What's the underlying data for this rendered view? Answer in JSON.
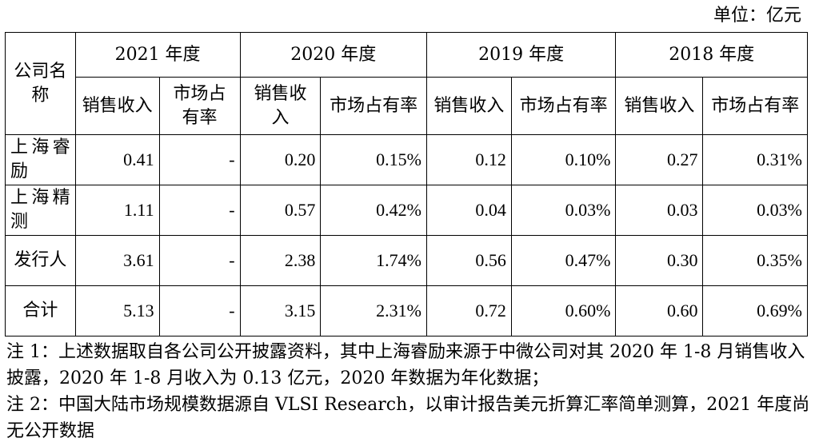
{
  "unit_label": "单位：亿元",
  "table": {
    "company_header": "公司名称",
    "years": [
      {
        "label": "2021 年度",
        "sales": "销售收入",
        "share": "市场占有率"
      },
      {
        "label": "2020 年度",
        "sales": "销售收入",
        "share": "市场占有率"
      },
      {
        "label": "2019 年度",
        "sales": "销售收入",
        "share": "市场占有率"
      },
      {
        "label": "2018 年度",
        "sales": "销售收入",
        "share": "市场占有率"
      }
    ],
    "rows": [
      {
        "name": "上海睿励",
        "cells": [
          "0.41",
          "-",
          "0.20",
          "0.15%",
          "0.12",
          "0.10%",
          "0.27",
          "0.31%"
        ]
      },
      {
        "name": "上海精测",
        "cells": [
          "1.11",
          "-",
          "0.57",
          "0.42%",
          "0.04",
          "0.03%",
          "0.03",
          "0.03%"
        ]
      },
      {
        "name": "发行人",
        "cells": [
          "3.61",
          "-",
          "2.38",
          "1.74%",
          "0.56",
          "0.47%",
          "0.30",
          "0.35%"
        ]
      },
      {
        "name": "合计",
        "cells": [
          "5.13",
          "-",
          "3.15",
          "2.31%",
          "0.72",
          "0.60%",
          "0.60",
          "0.69%"
        ]
      }
    ]
  },
  "notes": [
    "注 1：上述数据取自各公司公开披露资料，其中上海睿励来源于中微公司对其 2020 年 1-8 月销售收入披露，2020 年 1-8 月收入为 0.13 亿元，2020 年数据为年化数据；",
    "注 2：中国大陆市场规模数据源自 VLSI Research，以审计报告美元折算汇率简单测算，2021 年度尚无公开数据"
  ]
}
